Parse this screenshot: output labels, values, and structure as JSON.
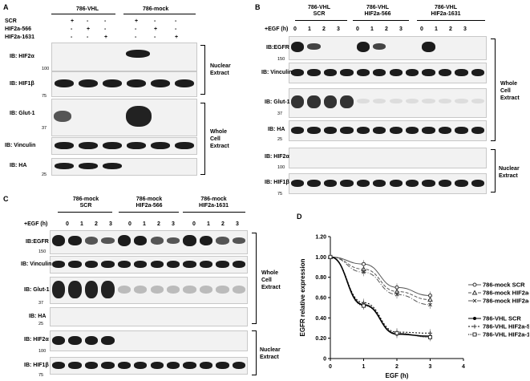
{
  "panelA": {
    "letter": "A",
    "group1": "786-VHL",
    "group2": "786-mock",
    "conditions": [
      {
        "name": "SCR",
        "marks": [
          "+",
          "-",
          "-",
          "+",
          "-",
          "-"
        ]
      },
      {
        "name": "HIF2a-566",
        "marks": [
          "-",
          "+",
          "-",
          "-",
          "+",
          "-"
        ]
      },
      {
        "name": "HIF2a-1631",
        "marks": [
          "-",
          "-",
          "+",
          "-",
          "-",
          "+"
        ]
      }
    ],
    "rows": [
      "IB: HIF2α",
      "IB: HIF1β",
      "IB: Glut-1",
      "IB: Vinculin",
      "IB: HA"
    ],
    "markers": [
      "100",
      "75",
      "37",
      "25"
    ],
    "brackets": [
      "Nuclear\nExtract",
      "Whole\nCell\nExtract"
    ]
  },
  "panelB": {
    "letter": "B",
    "groups": [
      "786-VHL\nSCR",
      "786-VHL\nHIF2a-566",
      "786-VHL\nHIF2a-1631"
    ],
    "egf_label": "+EGF (h)",
    "times": [
      "0",
      "1",
      "2",
      "3"
    ],
    "rows": [
      "IB:EGFR",
      "IB: Vinculin",
      "IB: Glut-1",
      "IB: HA",
      "IB: HIF2α",
      "IB: HIF1β"
    ],
    "markers": [
      "150",
      "37",
      "25",
      "100",
      "75"
    ],
    "brackets": [
      "Whole\nCell\nExtract",
      "Nuclear\nExtract"
    ]
  },
  "panelC": {
    "letter": "C",
    "groups": [
      "786-mock\nSCR",
      "786-mock\nHIF2a-566",
      "786-mock\nHIF2a-1631"
    ],
    "egf_label": "+EGF (h)",
    "times": [
      "0",
      "1",
      "2",
      "3"
    ],
    "rows": [
      "IB:EGFR",
      "IB: Vinculin",
      "IB: Glut-1",
      "IB: HA",
      "IB: HIF2α",
      "IB: HIF1β"
    ],
    "markers": [
      "150",
      "37",
      "25",
      "100",
      "75"
    ],
    "brackets": [
      "Whole\nCell\nExtract",
      "Nuclear\nExtract"
    ]
  },
  "panelD": {
    "letter": "D"
  },
  "chart_data": {
    "type": "line",
    "xlabel": "EGF (h)",
    "ylabel": "EGFR relative expression",
    "xlim": [
      0,
      4
    ],
    "ylim": [
      0,
      1.2
    ],
    "xticks": [
      "0",
      "1",
      "2",
      "3",
      "4"
    ],
    "yticks": [
      "0",
      "0.20",
      "0.40",
      "0.60",
      "0.80",
      "1.00",
      "1.20"
    ],
    "x": [
      0,
      1,
      2,
      3
    ],
    "series": [
      {
        "name": "786-mock SCR",
        "values": [
          1.0,
          0.93,
          0.7,
          0.62
        ]
      },
      {
        "name": "786-mock HIF2a-566",
        "values": [
          1.0,
          0.88,
          0.66,
          0.58
        ]
      },
      {
        "name": "786-mock HIF2a-1631",
        "values": [
          1.0,
          0.85,
          0.63,
          0.53
        ]
      },
      {
        "name": "786-VHL SCR",
        "values": [
          1.0,
          0.53,
          0.24,
          0.22
        ]
      },
      {
        "name": "786-VHL HIF2a-566",
        "values": [
          1.0,
          0.55,
          0.26,
          0.25
        ]
      },
      {
        "name": "786-VHL HIF2a-1631",
        "values": [
          1.0,
          0.52,
          0.25,
          0.21
        ]
      }
    ],
    "legend": "right"
  }
}
